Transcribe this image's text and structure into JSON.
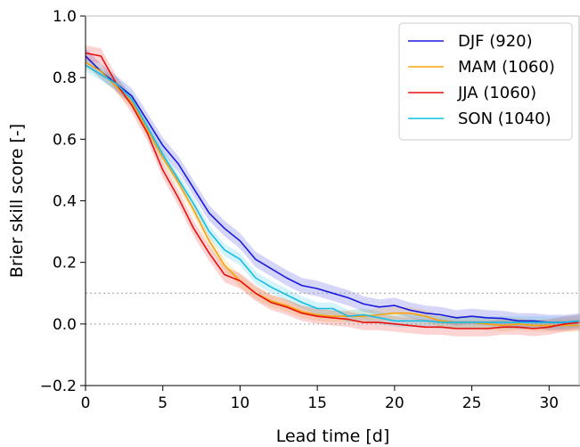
{
  "chart_data": {
    "type": "line",
    "xlabel": "Lead time [d]",
    "ylabel": "Brier skill score [-]",
    "xlim": [
      0,
      32
    ],
    "ylim": [
      -0.2,
      1.0
    ],
    "x_ticks": [
      0,
      5,
      10,
      15,
      20,
      25,
      30
    ],
    "y_ticks": [
      -0.2,
      0.0,
      0.2,
      0.4,
      0.6,
      0.8,
      1.0
    ],
    "x_tick_labels": [
      "0",
      "5",
      "10",
      "15",
      "20",
      "25",
      "30"
    ],
    "y_tick_labels": [
      "−0.2",
      "0.0",
      "0.2",
      "0.4",
      "0.6",
      "0.8",
      "1.0"
    ],
    "reference_lines": [
      0.0,
      0.1
    ],
    "grid": false,
    "legend_position": "top-right",
    "x": [
      0,
      1,
      2,
      3,
      4,
      5,
      6,
      7,
      8,
      9,
      10,
      11,
      12,
      13,
      14,
      15,
      16,
      17,
      18,
      19,
      20,
      21,
      22,
      23,
      24,
      25,
      26,
      27,
      28,
      29,
      30,
      31,
      32
    ],
    "series": [
      {
        "name": "DJF (920)",
        "color": "#1a1adb",
        "band_halfwidth": 0.025,
        "values": [
          0.87,
          0.82,
          0.78,
          0.74,
          0.66,
          0.58,
          0.52,
          0.44,
          0.36,
          0.31,
          0.27,
          0.21,
          0.18,
          0.15,
          0.125,
          0.115,
          0.1,
          0.085,
          0.065,
          0.055,
          0.06,
          0.045,
          0.035,
          0.03,
          0.02,
          0.025,
          0.02,
          0.018,
          0.01,
          0.01,
          0.005,
          0.005,
          0.01
        ]
      },
      {
        "name": "MAM (1060)",
        "color": "#f5a30e",
        "band_halfwidth": 0.02,
        "values": [
          0.85,
          0.82,
          0.77,
          0.72,
          0.63,
          0.54,
          0.46,
          0.37,
          0.27,
          0.19,
          0.14,
          0.1,
          0.075,
          0.06,
          0.04,
          0.03,
          0.025,
          0.025,
          0.025,
          0.03,
          0.035,
          0.035,
          0.025,
          0.01,
          0.005,
          0.005,
          0.0,
          -0.005,
          0.0,
          -0.005,
          -0.005,
          -0.005,
          -0.005
        ]
      },
      {
        "name": "JJA (1060)",
        "color": "#e8100c",
        "band_halfwidth": 0.025,
        "values": [
          0.88,
          0.87,
          0.78,
          0.71,
          0.62,
          0.5,
          0.41,
          0.31,
          0.23,
          0.16,
          0.14,
          0.1,
          0.07,
          0.055,
          0.035,
          0.025,
          0.02,
          0.015,
          0.005,
          0.005,
          0.0,
          -0.005,
          -0.01,
          -0.01,
          -0.015,
          -0.015,
          -0.015,
          -0.01,
          -0.01,
          -0.015,
          -0.01,
          0.0,
          0.005
        ]
      },
      {
        "name": "SON (1040)",
        "color": "#14bde6",
        "band_halfwidth": 0.02,
        "values": [
          0.84,
          0.81,
          0.78,
          0.73,
          0.64,
          0.55,
          0.47,
          0.39,
          0.3,
          0.24,
          0.21,
          0.15,
          0.12,
          0.095,
          0.07,
          0.05,
          0.05,
          0.025,
          0.03,
          0.02,
          0.01,
          0.01,
          0.01,
          0.005,
          0.005,
          0.005,
          0.005,
          0.005,
          0.005,
          0.005,
          0.005,
          0.005,
          0.01
        ]
      }
    ]
  }
}
